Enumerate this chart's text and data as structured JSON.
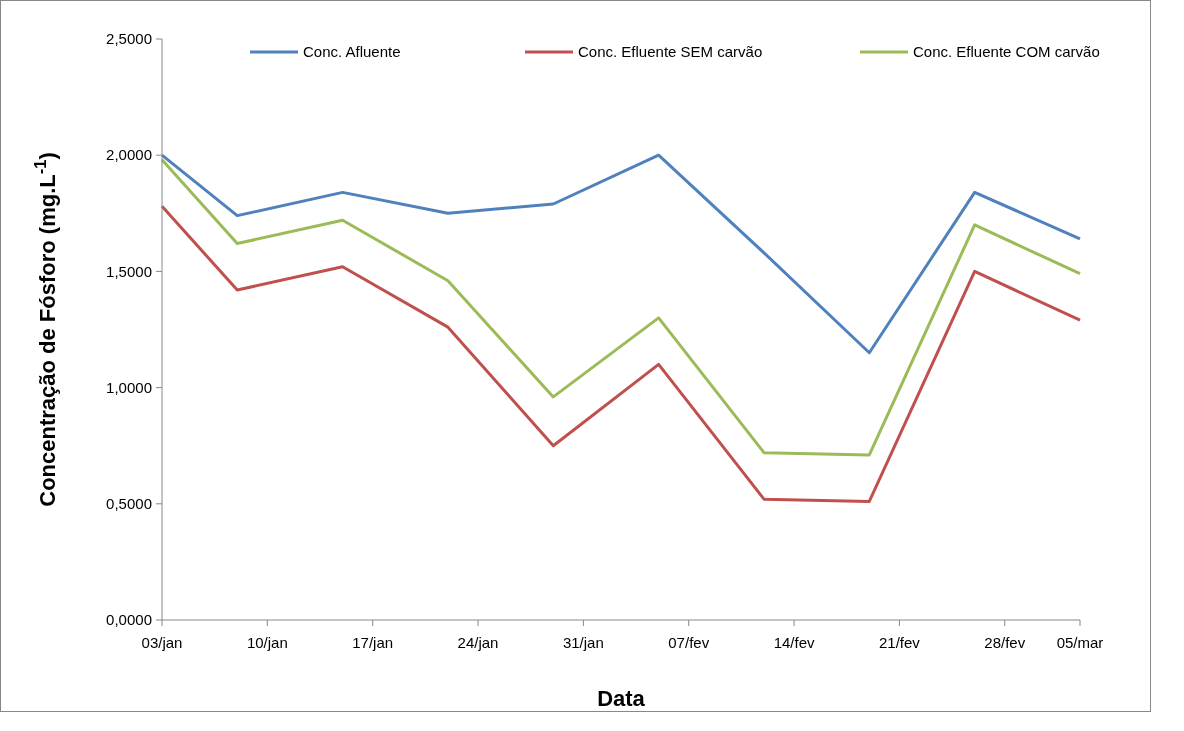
{
  "chart_data": {
    "type": "line",
    "xlabel": "Data",
    "ylabel": "Concentração de Fósforo (mg.L$^{-1}$)",
    "x": [
      "--01-03",
      "--01-08",
      "--01-15",
      "--01-22",
      "--01-29",
      "--02-05",
      "--02-12",
      "--02-19",
      "--02-26",
      "--03-05"
    ],
    "series": [
      {
        "name": "Conc. Afluente",
        "color": "#4f81bd",
        "values": [
          2.0,
          1.74,
          1.84,
          1.75,
          1.79,
          2.0,
          1.58,
          1.15,
          1.84,
          1.64
        ]
      },
      {
        "name": "Conc. Efluente SEM carvão",
        "color": "#c0504d",
        "values": [
          1.78,
          1.42,
          1.52,
          1.26,
          0.75,
          1.1,
          0.52,
          0.51,
          1.5,
          1.29
        ]
      },
      {
        "name": "Conc. Efluente COM carvão",
        "color": "#9bbb59",
        "values": [
          1.98,
          1.62,
          1.72,
          1.46,
          0.96,
          1.3,
          0.72,
          0.71,
          1.7,
          1.49
        ]
      }
    ],
    "xlim": [
      "--01-03",
      "--03-05"
    ],
    "xticks": [
      {
        "value": "--01-03",
        "label": "03/jan"
      },
      {
        "value": "--01-10",
        "label": "10/jan"
      },
      {
        "value": "--01-17",
        "label": "17/jan"
      },
      {
        "value": "--01-24",
        "label": "24/jan"
      },
      {
        "value": "--01-31",
        "label": "31/jan"
      },
      {
        "value": "--02-07",
        "label": "07/fev"
      },
      {
        "value": "--02-14",
        "label": "14/fev"
      },
      {
        "value": "--02-21",
        "label": "21/fev"
      },
      {
        "value": "--02-28",
        "label": "28/fev"
      },
      {
        "value": "--03-05",
        "label": "05/mar"
      }
    ],
    "ylim": [
      0,
      2.5
    ],
    "yticks": [
      {
        "value": 0,
        "label": "0,0000"
      },
      {
        "value": 0.5,
        "label": "0,5000"
      },
      {
        "value": 1,
        "label": "1,0000"
      },
      {
        "value": 1.5,
        "label": "1,5000"
      },
      {
        "value": 2,
        "label": "2,0000"
      },
      {
        "value": 2.5,
        "label": "2,5000"
      }
    ],
    "grid": false,
    "legend": "top right",
    "marker": "none",
    "line_style": "solid"
  }
}
